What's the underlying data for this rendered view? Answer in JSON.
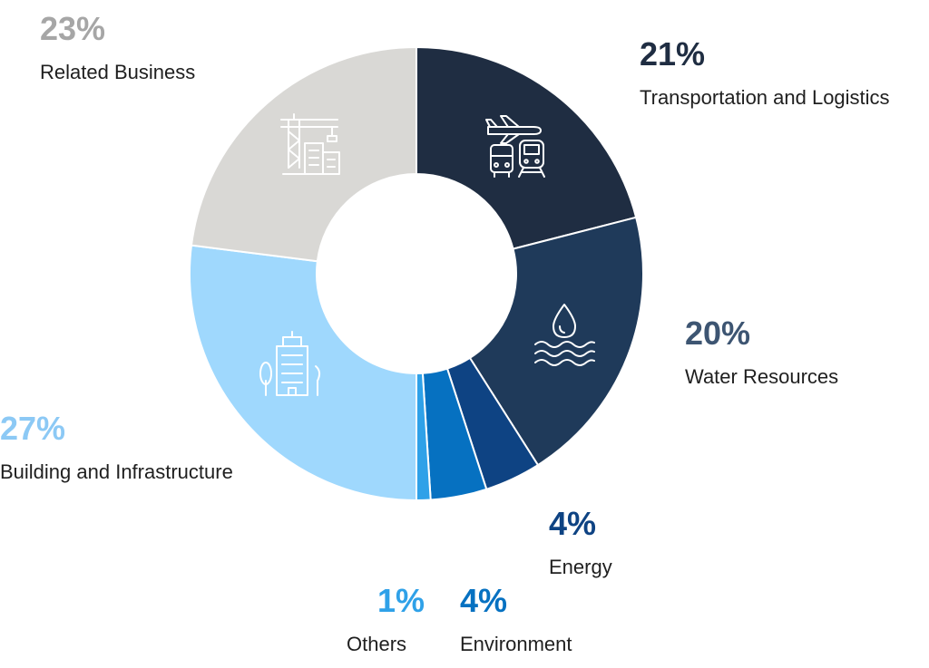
{
  "chart_data": {
    "type": "pie",
    "slices": [
      {
        "label": "Transportation and Logistics",
        "value": 21,
        "value_label": "21%",
        "color": "#1f2d42",
        "icon": "transport-icon"
      },
      {
        "label": "Water Resources",
        "value": 20,
        "value_label": "20%",
        "color": "#1f3a5a",
        "icon": "water-icon"
      },
      {
        "label": "Energy",
        "value": 4,
        "value_label": "4%",
        "color": "#0e4383",
        "icon": ""
      },
      {
        "label": "Environment",
        "value": 4,
        "value_label": "4%",
        "color": "#0671c1",
        "icon": ""
      },
      {
        "label": "Others",
        "value": 1,
        "value_label": "1%",
        "color": "#2fa1e8",
        "icon": ""
      },
      {
        "label": "Building and Infrastructure",
        "value": 27,
        "value_label": "27%",
        "color": "#9fd8fd",
        "icon": "building-icon"
      },
      {
        "label": "Related Business",
        "value": 23,
        "value_label": "23%",
        "color": "#d9d8d5",
        "icon": "construction-crane-icon"
      }
    ],
    "label_colors": {
      "Transportation and Logistics": "#1f2d42",
      "Water Resources": "#3d5572",
      "Energy": "#0e4383",
      "Environment": "#0671c1",
      "Others": "#2fa1e8",
      "Building and Infrastructure": "#8cc9f5",
      "Related Business": "#a6a6a6"
    }
  }
}
